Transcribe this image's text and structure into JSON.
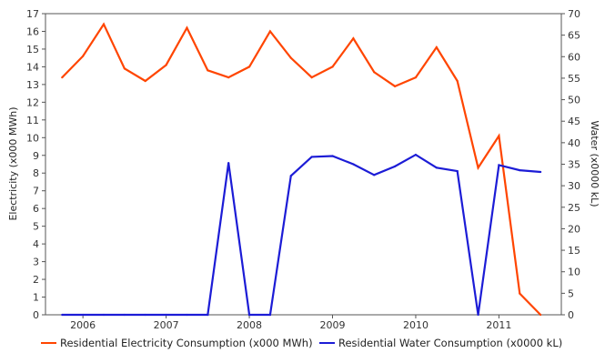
{
  "chart_data": {
    "type": "line",
    "title": "",
    "x_tick_labels": [
      "2006",
      "2007",
      "2008",
      "2009",
      "2010",
      "2011"
    ],
    "xlim": [
      2005.55,
      2011.75
    ],
    "y_left": {
      "label": "Electricity (x000 MWh)",
      "lim": [
        0,
        17
      ],
      "ticks": [
        0,
        1,
        2,
        3,
        4,
        5,
        6,
        7,
        8,
        9,
        10,
        11,
        12,
        13,
        14,
        15,
        16,
        17
      ]
    },
    "y_right": {
      "label": "Water (x0000 kL)",
      "lim": [
        0,
        70
      ],
      "ticks": [
        0,
        5,
        10,
        15,
        20,
        25,
        30,
        35,
        40,
        45,
        50,
        55,
        60,
        65,
        70
      ]
    },
    "grid": false,
    "legend_position": "bottom",
    "series": [
      {
        "name": "Residential Electricity Consumption (x000 MWh)",
        "axis": "left",
        "color": "#ff4500",
        "points": [
          [
            2005.75,
            13.4
          ],
          [
            2006.0,
            14.6
          ],
          [
            2006.25,
            16.4
          ],
          [
            2006.5,
            13.9
          ],
          [
            2006.75,
            13.2
          ],
          [
            2007.0,
            14.1
          ],
          [
            2007.25,
            16.2
          ],
          [
            2007.5,
            13.8
          ],
          [
            2007.75,
            13.4
          ],
          [
            2008.0,
            14.0
          ],
          [
            2008.25,
            16.0
          ],
          [
            2008.5,
            14.5
          ],
          [
            2008.75,
            13.4
          ],
          [
            2009.0,
            14.0
          ],
          [
            2009.25,
            15.6
          ],
          [
            2009.5,
            13.7
          ],
          [
            2009.75,
            12.9
          ],
          [
            2010.0,
            13.4
          ],
          [
            2010.25,
            15.1
          ],
          [
            2010.5,
            13.2
          ],
          [
            2010.75,
            8.3
          ],
          [
            2011.0,
            10.1
          ],
          [
            2011.25,
            1.2
          ],
          [
            2011.5,
            0.0
          ]
        ]
      },
      {
        "name": "Residential Water Consumption (x0000 kL)",
        "axis": "right",
        "color": "#1c1cd6",
        "points": [
          [
            2005.75,
            0
          ],
          [
            2006.0,
            0
          ],
          [
            2006.25,
            0
          ],
          [
            2006.5,
            0
          ],
          [
            2006.75,
            0
          ],
          [
            2007.0,
            0
          ],
          [
            2007.25,
            0
          ],
          [
            2007.5,
            0
          ],
          [
            2007.75,
            35.3
          ],
          [
            2008.0,
            0
          ],
          [
            2008.25,
            0
          ],
          [
            2008.5,
            32.3
          ],
          [
            2008.75,
            36.7
          ],
          [
            2009.0,
            36.9
          ],
          [
            2009.25,
            35
          ],
          [
            2009.5,
            32.5
          ],
          [
            2009.75,
            34.5
          ],
          [
            2010.0,
            37.2
          ],
          [
            2010.25,
            34.2
          ],
          [
            2010.5,
            33.4
          ],
          [
            2010.75,
            0
          ],
          [
            2011.0,
            34.8
          ],
          [
            2011.25,
            33.6
          ],
          [
            2011.5,
            33.2
          ]
        ]
      }
    ]
  }
}
